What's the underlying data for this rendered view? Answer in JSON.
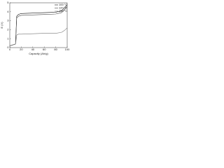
{
  "chart_data": {
    "type": "line",
    "y_label": "E (V)",
    "x_label": "Capacity (Ah/g)",
    "x": [
      0,
      5,
      10,
      12,
      15,
      20,
      40,
      60,
      80,
      90,
      95,
      100
    ],
    "series": [
      {
        "name": "100 °C",
        "color": "#111111",
        "values": [
          0.2,
          0.3,
          0.4,
          3.5,
          3.7,
          3.8,
          3.85,
          3.9,
          3.95,
          4.1,
          4.4,
          4.8
        ]
      },
      {
        "name": "120 °C",
        "color": "#444444",
        "values": [
          0.2,
          0.3,
          0.4,
          3.3,
          3.5,
          3.6,
          3.65,
          3.7,
          3.75,
          3.9,
          4.2,
          4.6
        ]
      },
      {
        "name": "150 °C",
        "color": "#777777",
        "values": [
          0.2,
          0.3,
          0.4,
          1.4,
          1.5,
          1.5,
          1.55,
          1.6,
          1.6,
          1.7,
          1.9,
          2.2
        ]
      }
    ],
    "xlim": [
      0,
      100
    ],
    "ylim": [
      0,
      5
    ],
    "xticks": [
      0,
      20,
      40,
      60,
      80,
      100
    ],
    "yticks": [
      0,
      1,
      2,
      3,
      4,
      5
    ],
    "legend": "upper right"
  }
}
